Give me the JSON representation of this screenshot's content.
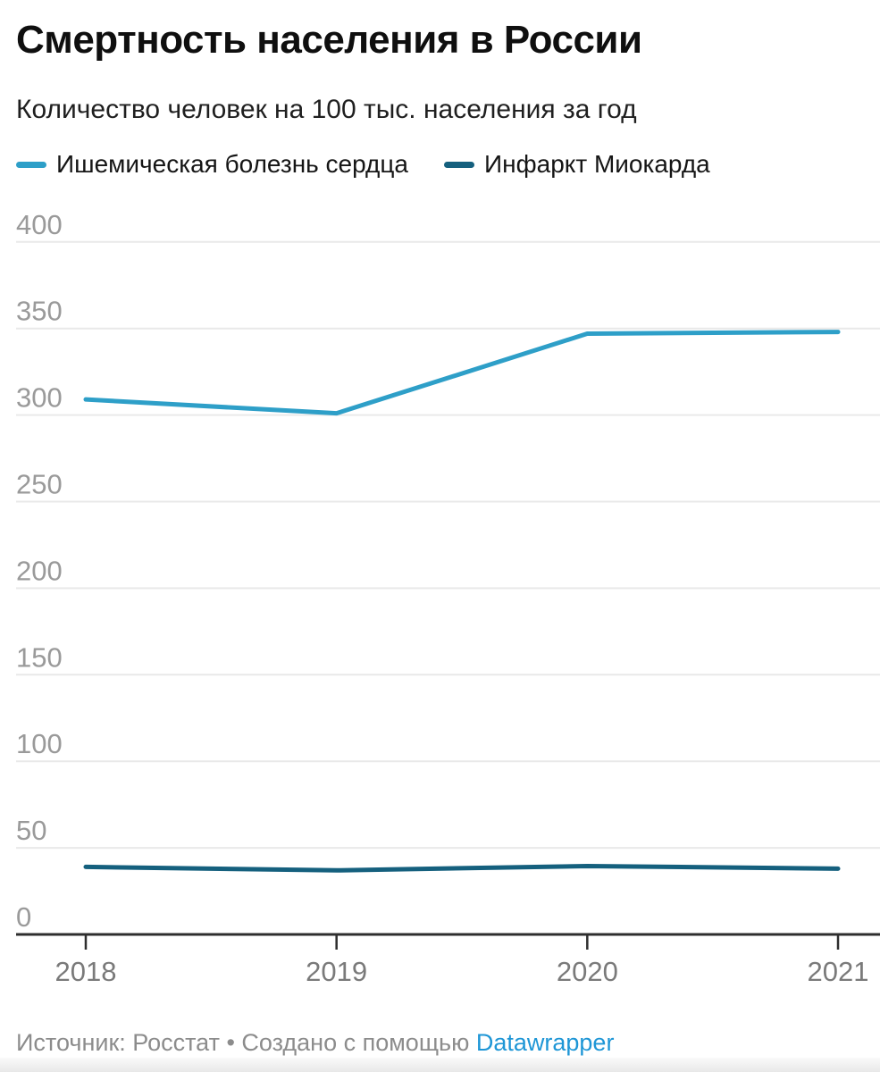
{
  "title": "Смертность населения в России",
  "subtitle": "Количество человек на 100 тыс. населения за год",
  "legend": {
    "items": [
      {
        "label": "Ишемическая болезнь сердца",
        "color": "#2e9fc8"
      },
      {
        "label": "Инфаркт Миокарда",
        "color": "#15607e"
      }
    ]
  },
  "footer": {
    "text": "Источник: Росстат • Создано с помощью ",
    "link_label": "Datawrapper",
    "link_color": "#1e96d6"
  },
  "colors": {
    "grid": "#e9e9e9",
    "axis": "#2e2e2e",
    "ytick_label": "#9a9a9a",
    "xtick_label": "#7a7a7a",
    "title": "#0f0f0f",
    "series_light": "#2e9fc8",
    "series_dark": "#15607e"
  },
  "chart_data": {
    "type": "line",
    "title": "Смертность населения в России",
    "subtitle": "Количество человек на 100 тыс. населения за год",
    "x": [
      2018,
      2019,
      2020,
      2021
    ],
    "series": [
      {
        "name": "Ишемическая болезнь сердца",
        "color": "#2e9fc8",
        "values": [
          309,
          301,
          347,
          348
        ]
      },
      {
        "name": "Инфаркт Миокарда",
        "color": "#15607e",
        "values": [
          39,
          37,
          39.5,
          38
        ]
      }
    ],
    "ylim": [
      0,
      400
    ],
    "yticks": [
      400,
      350,
      300,
      250,
      200,
      150,
      100,
      50,
      0
    ],
    "grid": true,
    "legend_position": "top",
    "xlabel": "",
    "ylabel": ""
  }
}
